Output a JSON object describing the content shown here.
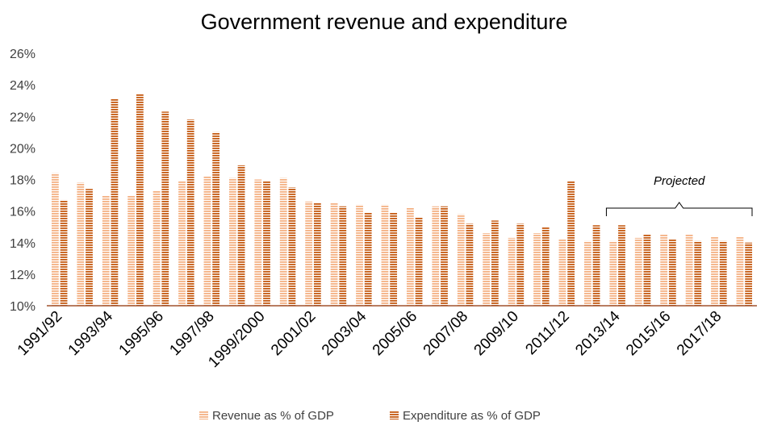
{
  "chart_data": {
    "type": "bar",
    "title": "Government revenue and expenditure",
    "xlabel": "",
    "ylabel": "",
    "ylim": [
      10,
      26
    ],
    "yticks": [
      "10%",
      "12%",
      "14%",
      "16%",
      "18%",
      "20%",
      "22%",
      "24%",
      "26%"
    ],
    "grid": false,
    "legend_position": "bottom",
    "categories": [
      "1991/92",
      "1992/93",
      "1993/94",
      "1994/95",
      "1995/96",
      "1996/97",
      "1997/98",
      "1998/99",
      "1999/2000",
      "2000/01",
      "2001/02",
      "2002/03",
      "2003/04",
      "2004/05",
      "2005/06",
      "2006/07",
      "2007/08",
      "2008/09",
      "2009/10",
      "2010/11",
      "2011/12",
      "2012/13",
      "2013/14",
      "2014/15",
      "2015/16",
      "2016/17",
      "2017/18",
      "2018/19"
    ],
    "visible_tick_labels": [
      "1991/92",
      "1993/94",
      "1995/96",
      "1997/98",
      "1999/2000",
      "2001/02",
      "2003/04",
      "2005/06",
      "2007/08",
      "2009/10",
      "2011/12",
      "2013/14",
      "2015/16",
      "2017/18"
    ],
    "series": [
      {
        "name": "Revenue as % of GDP",
        "color": "#f4b183",
        "values": [
          18.4,
          17.8,
          17.0,
          17.0,
          17.3,
          17.9,
          18.2,
          18.1,
          18.0,
          18.1,
          16.6,
          16.5,
          16.4,
          16.4,
          16.2,
          16.3,
          15.8,
          14.6,
          14.3,
          14.6,
          14.2,
          14.1,
          14.1,
          14.3,
          14.5,
          14.5,
          14.4,
          14.4
        ]
      },
      {
        "name": "Expenditure as % of GDP",
        "color": "#c55a11",
        "values": [
          16.7,
          17.4,
          23.1,
          23.4,
          22.3,
          21.8,
          21.0,
          18.9,
          17.9,
          17.5,
          16.5,
          16.3,
          15.9,
          15.9,
          15.6,
          16.3,
          15.2,
          15.4,
          15.2,
          15.0,
          17.9,
          15.1,
          15.1,
          14.5,
          14.2,
          14.1,
          14.1,
          14.0
        ]
      }
    ],
    "annotations": [
      {
        "text": "Projected",
        "from_category": "2013/14",
        "to_category": "2018/19"
      }
    ]
  }
}
